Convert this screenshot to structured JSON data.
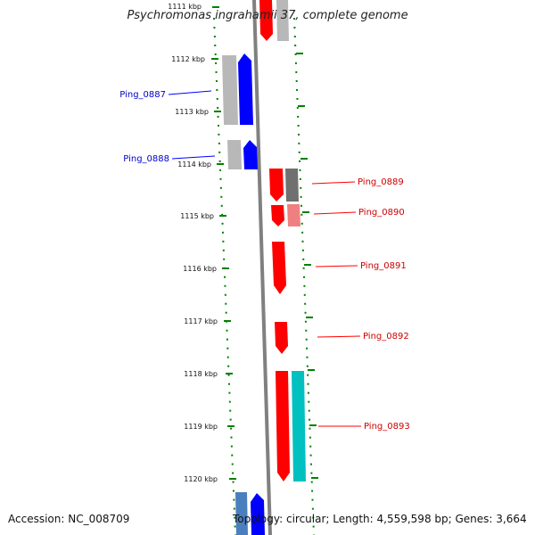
{
  "title": "Psychromonas ingrahamii 37, complete genome",
  "accession_text": "Accession: NC_008709",
  "topology_text": "Topology: circular; Length: 4,559,598 bp; Genes: 3,664",
  "colors": {
    "forward": "#0000ff",
    "reverse": "#ff0000",
    "gray": "#b8b8b8",
    "dark_gray": "#707070",
    "pink": "#f08080",
    "cyan": "#00c0c0",
    "steel_blue": "#4a7fbf",
    "ruler_green": "#008000",
    "backbone": "#808080"
  },
  "ruler": {
    "unit": "kbp",
    "ticks": [
      "1111 kbp",
      "1112 kbp",
      "1113 kbp",
      "1114 kbp",
      "1115 kbp",
      "1116 kbp",
      "1117 kbp",
      "1118 kbp",
      "1119 kbp",
      "1120 kbp"
    ]
  },
  "genes": [
    {
      "name": "Ping_0887",
      "strand": "forward"
    },
    {
      "name": "Ping_0888",
      "strand": "forward"
    },
    {
      "name": "Ping_0889",
      "strand": "reverse"
    },
    {
      "name": "Ping_0890",
      "strand": "reverse"
    },
    {
      "name": "Ping_0891",
      "strand": "reverse"
    },
    {
      "name": "Ping_0892",
      "strand": "reverse"
    },
    {
      "name": "Ping_0893",
      "strand": "reverse"
    }
  ]
}
